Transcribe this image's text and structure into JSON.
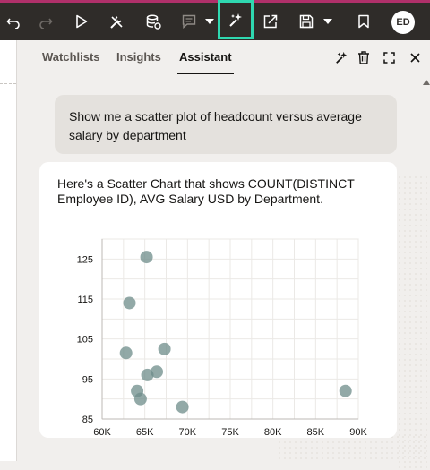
{
  "colors": {
    "toolbar_bg": "#2f2c29",
    "accent_strip": "#b0306a",
    "active_highlight": "#2fd8b0",
    "point_color": "#6e8c8a"
  },
  "toolbar": {
    "icons": [
      "undo-icon",
      "redo-icon",
      "play-icon",
      "tools-icon",
      "data-refresh-icon",
      "comment-icon",
      "chevron-down-icon",
      "assistant-sparkle-icon",
      "export-icon",
      "save-icon",
      "chevron-down-icon",
      "bookmark-icon"
    ],
    "avatar_initials": "ED"
  },
  "panel": {
    "tabs": [
      {
        "label": "Watchlists"
      },
      {
        "label": "Insights"
      },
      {
        "label": "Assistant"
      }
    ],
    "selected_tab": "Assistant",
    "header_icons": [
      "sparkle-icon",
      "trash-icon",
      "expand-icon",
      "close-icon"
    ]
  },
  "conversation": {
    "user_message": "Show me a scatter plot of headcount versus average salary by department",
    "assistant_message": "Here's a Scatter Chart that shows COUNT(DISTINCT Employee ID), AVG Salary USD by Department."
  },
  "chart_data": {
    "type": "scatter",
    "title": "",
    "xlabel": "",
    "ylabel": "",
    "xlim": [
      60000,
      90000
    ],
    "ylim": [
      85,
      130
    ],
    "x_ticks": [
      60000,
      65000,
      70000,
      75000,
      80000,
      85000,
      90000
    ],
    "x_tick_labels": [
      "60K",
      "65K",
      "70K",
      "75K",
      "80K",
      "85K",
      "90K"
    ],
    "y_ticks": [
      85,
      95,
      105,
      115,
      125
    ],
    "y_tick_labels": [
      "85",
      "95",
      "105",
      "115",
      "125"
    ],
    "grid": true,
    "points": [
      {
        "x": 65200,
        "y": 125.5
      },
      {
        "x": 63200,
        "y": 114
      },
      {
        "x": 62800,
        "y": 101.5
      },
      {
        "x": 67300,
        "y": 102.5
      },
      {
        "x": 65300,
        "y": 96
      },
      {
        "x": 66400,
        "y": 96.8
      },
      {
        "x": 64100,
        "y": 92
      },
      {
        "x": 64500,
        "y": 90
      },
      {
        "x": 69400,
        "y": 88
      },
      {
        "x": 88500,
        "y": 92
      }
    ]
  }
}
